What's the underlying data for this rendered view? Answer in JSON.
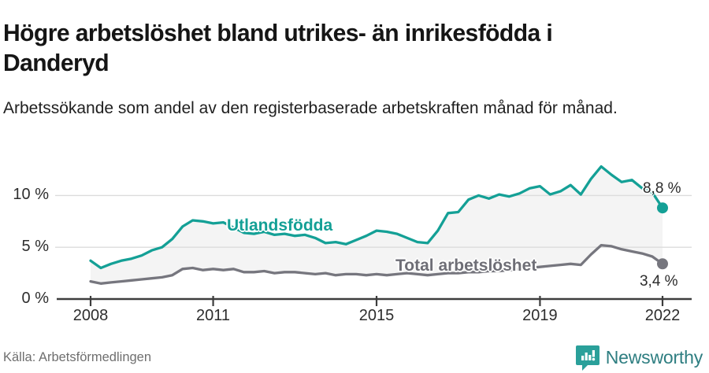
{
  "header": {
    "title": "Högre arbetslöshet bland utrikes- än inrikesfödda i Danderyd",
    "subtitle": "Arbetssökande som andel av den registerbaserade arbetskraften månad för månad."
  },
  "footer": {
    "source": "Källa: Arbetsförmedlingen",
    "brand": "Newsworthy",
    "brand_icon": "bar-chart-speech-bubble-icon"
  },
  "colors": {
    "foreign_born_line": "#14a096",
    "total_line": "#76767e",
    "area_fill": "#f4f4f4",
    "gridline": "#dcdcdc",
    "axis": "#3d3d3d",
    "brand_teal": "#2aa09a",
    "brand_text": "#2e7e81"
  },
  "chart_data": {
    "type": "line",
    "title": "Högre arbetslöshet bland utrikes- än inrikesfödda i Danderyd",
    "subtitle": "Arbetssökande som andel av den registerbaserade arbetskraften månad för månad.",
    "xlabel": "",
    "ylabel": "",
    "grid": "horizontal",
    "legend_position": "inline-labels",
    "xlim": [
      2007.9,
      2022.7
    ],
    "ylim": [
      0,
      13.3
    ],
    "x_ticks": [
      2008,
      2011,
      2015,
      2019,
      2022
    ],
    "y_ticks": [
      {
        "value": 0,
        "label": "0 %"
      },
      {
        "value": 5,
        "label": "5 %"
      },
      {
        "value": 10,
        "label": "10 %"
      }
    ],
    "area_between_series": true,
    "x": [
      2008,
      2008.25,
      2008.5,
      2008.75,
      2009,
      2009.25,
      2009.5,
      2009.75,
      2010,
      2010.25,
      2010.5,
      2010.75,
      2011,
      2011.25,
      2011.5,
      2011.75,
      2012,
      2012.25,
      2012.5,
      2012.75,
      2013,
      2013.25,
      2013.5,
      2013.75,
      2014,
      2014.25,
      2014.5,
      2014.75,
      2015,
      2015.25,
      2015.5,
      2015.75,
      2016,
      2016.25,
      2016.5,
      2016.75,
      2017,
      2017.25,
      2017.5,
      2017.75,
      2018,
      2018.25,
      2018.5,
      2018.75,
      2019,
      2019.25,
      2019.5,
      2019.75,
      2020,
      2020.25,
      2020.5,
      2020.75,
      2021,
      2021.25,
      2021.5,
      2021.75,
      2022
    ],
    "series": [
      {
        "name": "Utlandsfödda",
        "color": "#14a096",
        "end_label": "8,8 %",
        "end_value": 8.8,
        "values": [
          3.7,
          3.0,
          3.4,
          3.7,
          3.9,
          4.2,
          4.7,
          5.0,
          5.8,
          7.0,
          7.6,
          7.5,
          7.3,
          7.4,
          6.9,
          6.4,
          6.3,
          6.5,
          6.2,
          6.3,
          6.1,
          6.2,
          5.9,
          5.4,
          5.5,
          5.3,
          5.7,
          6.1,
          6.6,
          6.5,
          6.3,
          5.9,
          5.5,
          5.4,
          6.6,
          8.3,
          8.4,
          9.6,
          10.0,
          9.7,
          10.1,
          9.9,
          10.2,
          10.7,
          10.9,
          10.1,
          10.4,
          11.0,
          10.1,
          11.6,
          12.8,
          12.0,
          11.3,
          11.5,
          10.7,
          10.3,
          8.8
        ]
      },
      {
        "name": "Total arbetslöshet",
        "color": "#76767e",
        "end_label": "3,4 %",
        "end_value": 3.4,
        "values": [
          1.7,
          1.5,
          1.6,
          1.7,
          1.8,
          1.9,
          2.0,
          2.1,
          2.3,
          2.9,
          3.0,
          2.8,
          2.9,
          2.8,
          2.9,
          2.6,
          2.6,
          2.7,
          2.5,
          2.6,
          2.6,
          2.5,
          2.4,
          2.5,
          2.3,
          2.4,
          2.4,
          2.3,
          2.4,
          2.3,
          2.4,
          2.5,
          2.4,
          2.3,
          2.4,
          2.5,
          2.5,
          2.6,
          2.6,
          2.7,
          2.7,
          2.8,
          2.9,
          3.0,
          3.1,
          3.2,
          3.3,
          3.4,
          3.3,
          4.3,
          5.2,
          5.1,
          4.8,
          4.6,
          4.4,
          4.1,
          3.4
        ]
      }
    ]
  }
}
